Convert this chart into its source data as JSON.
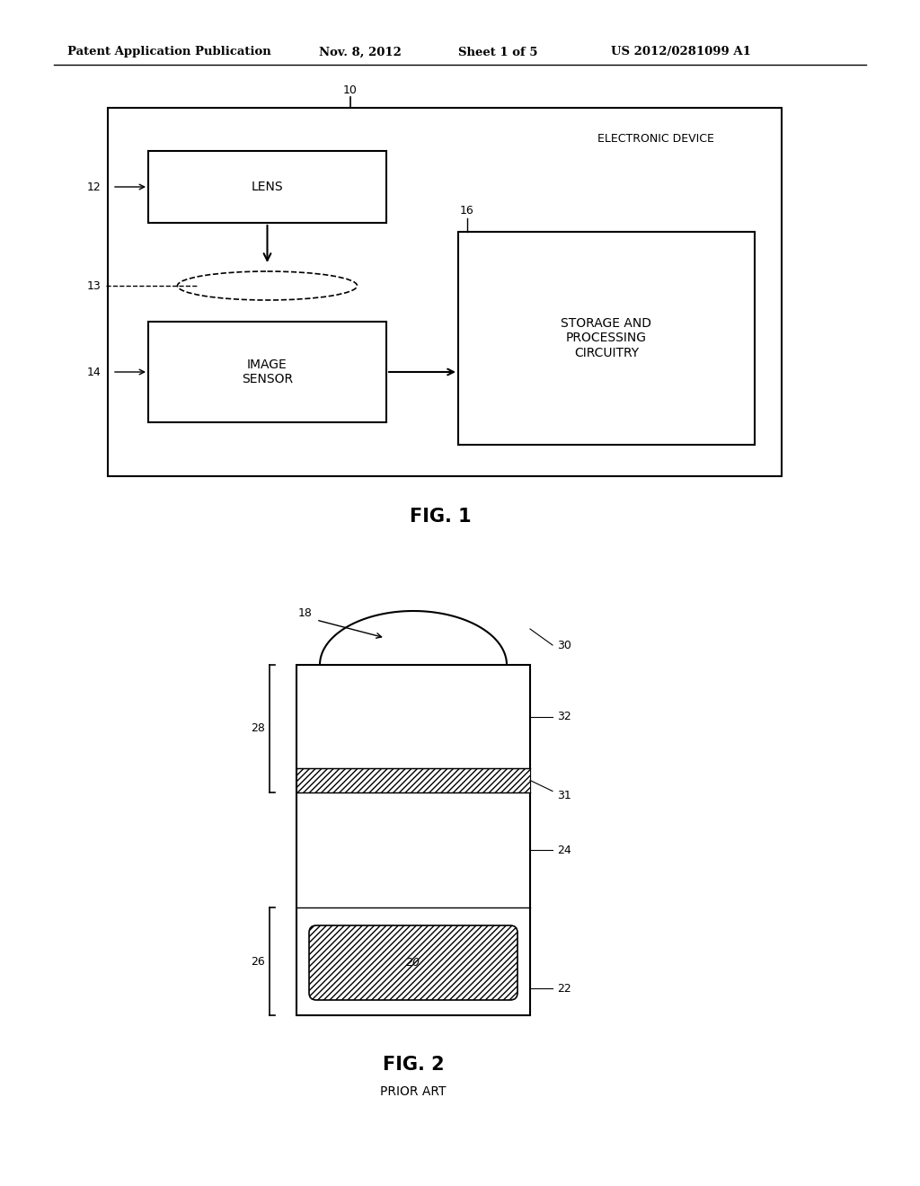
{
  "bg_color": "#ffffff",
  "header_text": "Patent Application Publication",
  "header_date": "Nov. 8, 2012",
  "header_sheet": "Sheet 1 of 5",
  "header_patent": "US 2012/0281099 A1",
  "fig1_label": "FIG. 1",
  "fig2_label": "FIG. 2",
  "fig2_sublabel": "PRIOR ART",
  "outer_box_label": "ELECTRONIC DEVICE",
  "lens_label": "LENS",
  "image_sensor_label": "IMAGE\nSENSOR",
  "storage_label": "STORAGE AND\nPROCESSING\nCIRCUITRY"
}
